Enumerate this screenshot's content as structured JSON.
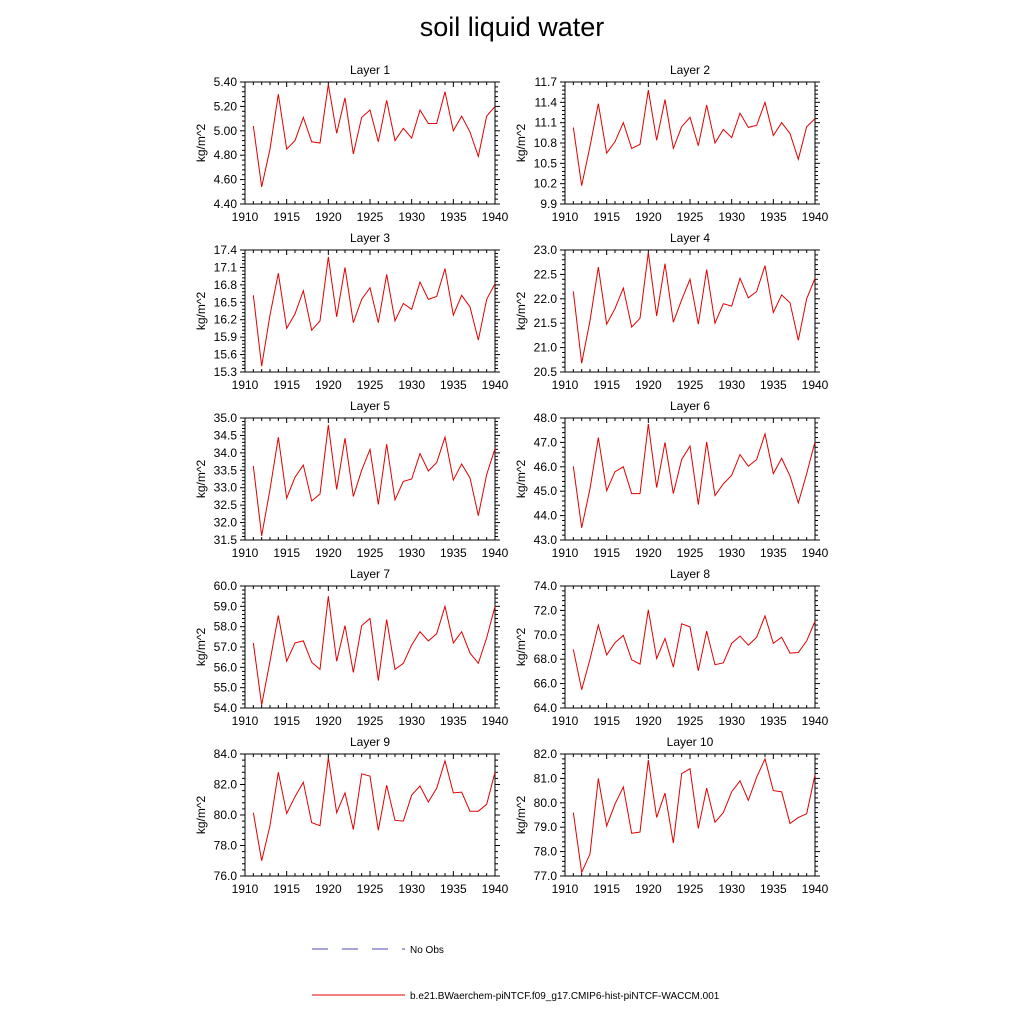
{
  "title": "soil liquid water",
  "chart_data": [
    {
      "type": "line",
      "title": "Layer 1",
      "ylabel": "kg/m^2",
      "xlim": [
        1910,
        1940
      ],
      "ylim": [
        4.4,
        5.4
      ],
      "xticks": [
        1910,
        1915,
        1920,
        1925,
        1930,
        1935,
        1940
      ],
      "xtick_labels": [
        "1910",
        "1915",
        "1920",
        "1925",
        "1930",
        "1935",
        "1940"
      ],
      "yticks": [
        4.4,
        4.6,
        4.8,
        5.0,
        5.2,
        5.4
      ],
      "ytick_labels": [
        "4.40",
        "4.60",
        "4.80",
        "5.00",
        "5.20",
        "5.40"
      ],
      "x": [
        1911,
        1912,
        1913,
        1914,
        1915,
        1916,
        1917,
        1918,
        1919,
        1920,
        1921,
        1922,
        1923,
        1924,
        1925,
        1926,
        1927,
        1928,
        1929,
        1930,
        1931,
        1932,
        1933,
        1934,
        1935,
        1936,
        1937,
        1938,
        1939,
        1940
      ],
      "series": [
        {
          "name": "b.e21.BWaerchem-piNTCF.f09_g17.CMIP6-hist-piNTCF-WACCM.001",
          "color": "#e00000",
          "values": [
            5.04,
            4.54,
            4.85,
            5.3,
            4.85,
            4.92,
            5.11,
            4.91,
            4.9,
            5.38,
            4.98,
            5.27,
            4.81,
            5.11,
            5.17,
            4.91,
            5.25,
            4.92,
            5.02,
            4.94,
            5.17,
            5.06,
            5.06,
            5.32,
            5.0,
            5.12,
            4.99,
            4.79,
            5.12,
            5.2
          ]
        }
      ]
    },
    {
      "type": "line",
      "title": "Layer 2",
      "ylabel": "kg/m^2",
      "xlim": [
        1910,
        1940
      ],
      "ylim": [
        9.9,
        11.7
      ],
      "xticks": [
        1910,
        1915,
        1920,
        1925,
        1930,
        1935,
        1940
      ],
      "xtick_labels": [
        "1910",
        "1915",
        "1920",
        "1925",
        "1930",
        "1935",
        "1940"
      ],
      "yticks": [
        9.9,
        10.2,
        10.5,
        10.8,
        11.1,
        11.4,
        11.7
      ],
      "ytick_labels": [
        "9.9",
        "10.2",
        "10.5",
        "10.8",
        "11.1",
        "11.4",
        "11.7"
      ],
      "x": [
        1911,
        1912,
        1913,
        1914,
        1915,
        1916,
        1917,
        1918,
        1919,
        1920,
        1921,
        1922,
        1923,
        1924,
        1925,
        1926,
        1927,
        1928,
        1929,
        1930,
        1931,
        1932,
        1933,
        1934,
        1935,
        1936,
        1937,
        1938,
        1939,
        1940
      ],
      "series": [
        {
          "name": "b.e21.BWaerchem-piNTCF.f09_g17.CMIP6-hist-piNTCF-WACCM.001",
          "color": "#e00000",
          "values": [
            11.03,
            10.17,
            10.75,
            11.38,
            10.65,
            10.82,
            11.1,
            10.72,
            10.78,
            11.58,
            10.84,
            11.44,
            10.72,
            11.04,
            11.18,
            10.76,
            11.36,
            10.8,
            11.0,
            10.88,
            11.24,
            11.03,
            11.06,
            11.4,
            10.91,
            11.1,
            10.94,
            10.56,
            11.04,
            11.16
          ]
        }
      ]
    },
    {
      "type": "line",
      "title": "Layer 3",
      "ylabel": "kg/m^2",
      "xlim": [
        1910,
        1940
      ],
      "ylim": [
        15.3,
        17.4
      ],
      "xticks": [
        1910,
        1915,
        1920,
        1925,
        1930,
        1935,
        1940
      ],
      "xtick_labels": [
        "1910",
        "1915",
        "1920",
        "1925",
        "1930",
        "1935",
        "1940"
      ],
      "yticks": [
        15.3,
        15.6,
        15.9,
        16.2,
        16.5,
        16.8,
        17.1,
        17.4
      ],
      "ytick_labels": [
        "15.3",
        "15.6",
        "15.9",
        "16.2",
        "16.5",
        "16.8",
        "17.1",
        "17.4"
      ],
      "x": [
        1911,
        1912,
        1913,
        1914,
        1915,
        1916,
        1917,
        1918,
        1919,
        1920,
        1921,
        1922,
        1923,
        1924,
        1925,
        1926,
        1927,
        1928,
        1929,
        1930,
        1931,
        1932,
        1933,
        1934,
        1935,
        1936,
        1937,
        1938,
        1939,
        1940
      ],
      "series": [
        {
          "name": "b.e21.BWaerchem-piNTCF.f09_g17.CMIP6-hist-piNTCF-WACCM.001",
          "color": "#e00000",
          "values": [
            16.62,
            15.4,
            16.28,
            17.0,
            16.05,
            16.3,
            16.7,
            16.02,
            16.18,
            17.28,
            16.25,
            17.1,
            16.15,
            16.55,
            16.75,
            16.15,
            16.98,
            16.18,
            16.48,
            16.38,
            16.85,
            16.55,
            16.6,
            17.08,
            16.28,
            16.62,
            16.42,
            15.85,
            16.55,
            16.82
          ]
        }
      ]
    },
    {
      "type": "line",
      "title": "Layer 4",
      "ylabel": "kg/m^2",
      "xlim": [
        1910,
        1940
      ],
      "ylim": [
        20.5,
        23.0
      ],
      "xticks": [
        1910,
        1915,
        1920,
        1925,
        1930,
        1935,
        1940
      ],
      "xtick_labels": [
        "1910",
        "1915",
        "1920",
        "1925",
        "1930",
        "1935",
        "1940"
      ],
      "yticks": [
        20.5,
        21.0,
        21.5,
        22.0,
        22.5,
        23.0
      ],
      "ytick_labels": [
        "20.5",
        "21.0",
        "21.5",
        "22.0",
        "22.5",
        "23.0"
      ],
      "x": [
        1911,
        1912,
        1913,
        1914,
        1915,
        1916,
        1917,
        1918,
        1919,
        1920,
        1921,
        1922,
        1923,
        1924,
        1925,
        1926,
        1927,
        1928,
        1929,
        1930,
        1931,
        1932,
        1933,
        1934,
        1935,
        1936,
        1937,
        1938,
        1939,
        1940
      ],
      "series": [
        {
          "name": "b.e21.BWaerchem-piNTCF.f09_g17.CMIP6-hist-piNTCF-WACCM.001",
          "color": "#e00000",
          "values": [
            22.15,
            20.68,
            21.55,
            22.65,
            21.48,
            21.8,
            22.22,
            21.42,
            21.6,
            22.95,
            21.65,
            22.72,
            21.52,
            21.98,
            22.4,
            21.48,
            22.6,
            21.5,
            21.9,
            21.85,
            22.42,
            22.02,
            22.15,
            22.68,
            21.72,
            22.08,
            21.92,
            21.15,
            22.0,
            22.42
          ]
        }
      ]
    },
    {
      "type": "line",
      "title": "Layer 5",
      "ylabel": "kg/m^2",
      "xlim": [
        1910,
        1940
      ],
      "ylim": [
        31.5,
        35.0
      ],
      "xticks": [
        1910,
        1915,
        1920,
        1925,
        1930,
        1935,
        1940
      ],
      "xtick_labels": [
        "1910",
        "1915",
        "1920",
        "1925",
        "1930",
        "1935",
        "1940"
      ],
      "yticks": [
        31.5,
        32.0,
        32.5,
        33.0,
        33.5,
        34.0,
        34.5,
        35.0
      ],
      "ytick_labels": [
        "31.5",
        "32.0",
        "32.5",
        "33.0",
        "33.5",
        "34.0",
        "34.5",
        "35.0"
      ],
      "x": [
        1911,
        1912,
        1913,
        1914,
        1915,
        1916,
        1917,
        1918,
        1919,
        1920,
        1921,
        1922,
        1923,
        1924,
        1925,
        1926,
        1927,
        1928,
        1929,
        1930,
        1931,
        1932,
        1933,
        1934,
        1935,
        1936,
        1937,
        1938,
        1939,
        1940
      ],
      "series": [
        {
          "name": "b.e21.BWaerchem-piNTCF.f09_g17.CMIP6-hist-piNTCF-WACCM.001",
          "color": "#e00000",
          "values": [
            33.62,
            31.62,
            32.95,
            34.45,
            32.7,
            33.3,
            33.65,
            32.62,
            32.82,
            34.8,
            32.95,
            34.42,
            32.75,
            33.5,
            34.1,
            32.52,
            34.25,
            32.65,
            33.18,
            33.25,
            33.98,
            33.48,
            33.72,
            34.45,
            33.22,
            33.68,
            33.28,
            32.2,
            33.38,
            34.12
          ]
        }
      ]
    },
    {
      "type": "line",
      "title": "Layer 6",
      "ylabel": "kg/m^2",
      "xlim": [
        1910,
        1940
      ],
      "ylim": [
        43.0,
        48.0
      ],
      "xticks": [
        1910,
        1915,
        1920,
        1925,
        1930,
        1935,
        1940
      ],
      "xtick_labels": [
        "1910",
        "1915",
        "1920",
        "1925",
        "1930",
        "1935",
        "1940"
      ],
      "yticks": [
        43.0,
        44.0,
        45.0,
        46.0,
        47.0,
        48.0
      ],
      "ytick_labels": [
        "43.0",
        "44.0",
        "45.0",
        "46.0",
        "47.0",
        "48.0"
      ],
      "x": [
        1911,
        1912,
        1913,
        1914,
        1915,
        1916,
        1917,
        1918,
        1919,
        1920,
        1921,
        1922,
        1923,
        1924,
        1925,
        1926,
        1927,
        1928,
        1929,
        1930,
        1931,
        1932,
        1933,
        1934,
        1935,
        1936,
        1937,
        1938,
        1939,
        1940
      ],
      "series": [
        {
          "name": "b.e21.BWaerchem-piNTCF.f09_g17.CMIP6-hist-piNTCF-WACCM.001",
          "color": "#e00000",
          "values": [
            46.02,
            43.5,
            45.1,
            47.2,
            45.02,
            45.8,
            46.0,
            44.9,
            44.9,
            47.75,
            45.15,
            47.0,
            44.9,
            46.3,
            46.85,
            44.45,
            47.02,
            44.82,
            45.3,
            45.65,
            46.5,
            46.02,
            46.3,
            47.35,
            45.72,
            46.35,
            45.62,
            44.52,
            45.72,
            47.02
          ]
        }
      ]
    },
    {
      "type": "line",
      "title": "Layer 7",
      "ylabel": "kg/m^2",
      "xlim": [
        1910,
        1940
      ],
      "ylim": [
        54.0,
        60.0
      ],
      "xticks": [
        1910,
        1915,
        1920,
        1925,
        1930,
        1935,
        1940
      ],
      "xtick_labels": [
        "1910",
        "1915",
        "1920",
        "1925",
        "1930",
        "1935",
        "1940"
      ],
      "yticks": [
        54.0,
        55.0,
        56.0,
        57.0,
        58.0,
        59.0,
        60.0
      ],
      "ytick_labels": [
        "54.0",
        "55.0",
        "56.0",
        "57.0",
        "58.0",
        "59.0",
        "60.0"
      ],
      "x": [
        1911,
        1912,
        1913,
        1914,
        1915,
        1916,
        1917,
        1918,
        1919,
        1920,
        1921,
        1922,
        1923,
        1924,
        1925,
        1926,
        1927,
        1928,
        1929,
        1930,
        1931,
        1932,
        1933,
        1934,
        1935,
        1936,
        1937,
        1938,
        1939,
        1940
      ],
      "series": [
        {
          "name": "b.e21.BWaerchem-piNTCF.f09_g17.CMIP6-hist-piNTCF-WACCM.001",
          "color": "#e00000",
          "values": [
            57.2,
            54.15,
            56.3,
            58.55,
            56.3,
            57.2,
            57.3,
            56.25,
            55.9,
            59.5,
            56.3,
            58.05,
            55.75,
            58.05,
            58.4,
            55.35,
            58.35,
            55.9,
            56.2,
            57.1,
            57.75,
            57.3,
            57.65,
            59.0,
            57.2,
            57.75,
            56.7,
            56.2,
            57.45,
            59.0
          ]
        }
      ]
    },
    {
      "type": "line",
      "title": "Layer 8",
      "ylabel": "kg/m^2",
      "xlim": [
        1910,
        1940
      ],
      "ylim": [
        64.0,
        74.0
      ],
      "xticks": [
        1910,
        1915,
        1920,
        1925,
        1930,
        1935,
        1940
      ],
      "xtick_labels": [
        "1910",
        "1915",
        "1920",
        "1925",
        "1930",
        "1935",
        "1940"
      ],
      "yticks": [
        64.0,
        66.0,
        68.0,
        70.0,
        72.0,
        74.0
      ],
      "ytick_labels": [
        "64.0",
        "66.0",
        "68.0",
        "70.0",
        "72.0",
        "74.0"
      ],
      "x": [
        1911,
        1912,
        1913,
        1914,
        1915,
        1916,
        1917,
        1918,
        1919,
        1920,
        1921,
        1922,
        1923,
        1924,
        1925,
        1926,
        1927,
        1928,
        1929,
        1930,
        1931,
        1932,
        1933,
        1934,
        1935,
        1936,
        1937,
        1938,
        1939,
        1940
      ],
      "series": [
        {
          "name": "b.e21.BWaerchem-piNTCF.f09_g17.CMIP6-hist-piNTCF-WACCM.001",
          "color": "#e00000",
          "values": [
            68.8,
            65.5,
            68.0,
            70.8,
            68.35,
            69.35,
            69.95,
            67.95,
            67.6,
            72.05,
            68.05,
            69.7,
            67.35,
            70.9,
            70.65,
            67.05,
            70.3,
            67.55,
            67.7,
            69.3,
            69.9,
            69.15,
            69.8,
            71.55,
            69.3,
            69.8,
            68.5,
            68.55,
            69.5,
            71.1
          ]
        }
      ]
    },
    {
      "type": "line",
      "title": "Layer 9",
      "ylabel": "kg/m^2",
      "xlim": [
        1910,
        1940
      ],
      "ylim": [
        76.0,
        84.0
      ],
      "xticks": [
        1910,
        1915,
        1920,
        1925,
        1930,
        1935,
        1940
      ],
      "xtick_labels": [
        "1910",
        "1915",
        "1920",
        "1925",
        "1930",
        "1935",
        "1940"
      ],
      "yticks": [
        76.0,
        78.0,
        80.0,
        82.0,
        84.0
      ],
      "ytick_labels": [
        "76.0",
        "78.0",
        "80.0",
        "82.0",
        "84.0"
      ],
      "x": [
        1911,
        1912,
        1913,
        1914,
        1915,
        1916,
        1917,
        1918,
        1919,
        1920,
        1921,
        1922,
        1923,
        1924,
        1925,
        1926,
        1927,
        1928,
        1929,
        1930,
        1931,
        1932,
        1933,
        1934,
        1935,
        1936,
        1937,
        1938,
        1939,
        1940
      ],
      "series": [
        {
          "name": "b.e21.BWaerchem-piNTCF.f09_g17.CMIP6-hist-piNTCF-WACCM.001",
          "color": "#e00000",
          "values": [
            80.15,
            77.0,
            79.3,
            82.8,
            80.1,
            81.2,
            82.15,
            79.5,
            79.3,
            83.75,
            80.15,
            81.45,
            79.05,
            82.7,
            82.55,
            79.0,
            81.95,
            79.65,
            79.6,
            81.3,
            81.9,
            80.85,
            81.75,
            83.55,
            81.45,
            81.5,
            80.25,
            80.25,
            80.7,
            82.8
          ]
        }
      ]
    },
    {
      "type": "line",
      "title": "Layer 10",
      "ylabel": "kg/m^2",
      "xlim": [
        1910,
        1940
      ],
      "ylim": [
        77.0,
        82.0
      ],
      "xticks": [
        1910,
        1915,
        1920,
        1925,
        1930,
        1935,
        1940
      ],
      "xtick_labels": [
        "1910",
        "1915",
        "1920",
        "1925",
        "1930",
        "1935",
        "1940"
      ],
      "yticks": [
        77.0,
        78.0,
        79.0,
        80.0,
        81.0,
        82.0
      ],
      "ytick_labels": [
        "77.0",
        "78.0",
        "79.0",
        "80.0",
        "81.0",
        "82.0"
      ],
      "x": [
        1911,
        1912,
        1913,
        1914,
        1915,
        1916,
        1917,
        1918,
        1919,
        1920,
        1921,
        1922,
        1923,
        1924,
        1925,
        1926,
        1927,
        1928,
        1929,
        1930,
        1931,
        1932,
        1933,
        1934,
        1935,
        1936,
        1937,
        1938,
        1939,
        1940
      ],
      "series": [
        {
          "name": "b.e21.BWaerchem-piNTCF.f09_g17.CMIP6-hist-piNTCF-WACCM.001",
          "color": "#e00000",
          "values": [
            79.6,
            77.15,
            77.9,
            81.0,
            79.05,
            79.95,
            80.65,
            78.75,
            78.8,
            81.75,
            79.4,
            80.4,
            78.35,
            81.2,
            81.4,
            78.95,
            80.6,
            79.2,
            79.6,
            80.45,
            80.9,
            80.1,
            81.05,
            81.8,
            80.5,
            80.45,
            79.15,
            79.4,
            79.55,
            81.15
          ]
        }
      ]
    }
  ],
  "legend": [
    {
      "label": "No Obs",
      "style": "dashed",
      "color": "#4a4ab0"
    },
    {
      "label": "b.e21.BWaerchem-piNTCF.f09_g17.CMIP6-hist-piNTCF-WACCM.001",
      "style": "solid",
      "color": "#e00000"
    }
  ]
}
